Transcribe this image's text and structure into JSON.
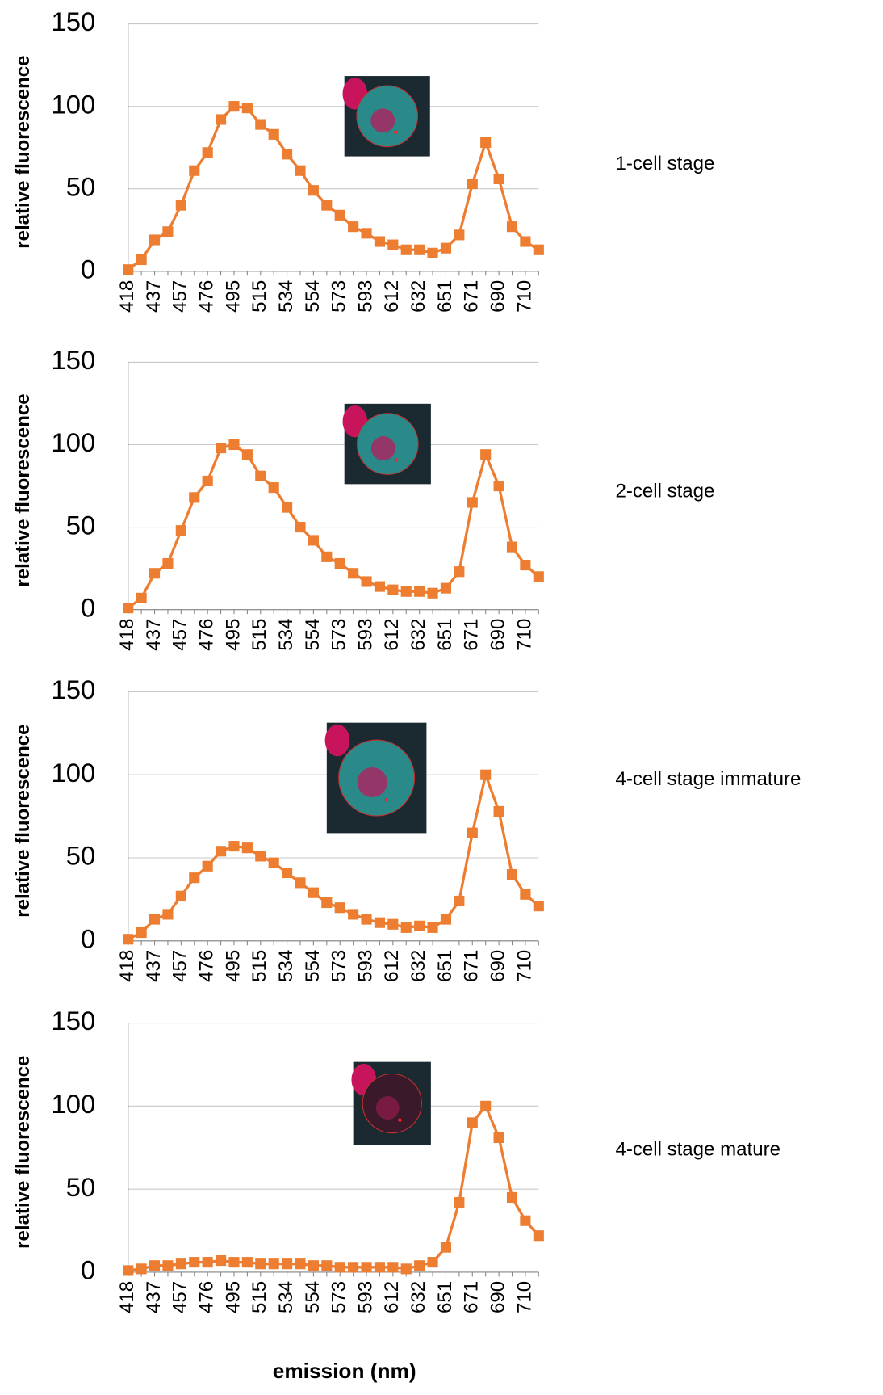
{
  "chart_data": [
    {
      "type": "line",
      "annotation": "1-cell stage",
      "y_label": "relative fluorescence",
      "categories": [
        "418",
        null,
        "437",
        null,
        "457",
        null,
        "476",
        null,
        "495",
        null,
        "515",
        null,
        "534",
        null,
        "554",
        null,
        "573",
        null,
        "593",
        null,
        "612",
        null,
        "632",
        null,
        "651",
        null,
        "671",
        null,
        "690",
        null,
        "710",
        null
      ],
      "values": [
        1,
        7,
        19,
        24,
        40,
        61,
        72,
        92,
        100,
        99,
        89,
        83,
        71,
        61,
        49,
        40,
        34,
        27,
        23,
        18,
        16,
        13,
        13,
        11,
        14,
        22,
        53,
        78,
        56,
        27,
        18,
        13
      ],
      "color": "#ed7d31",
      "ylim": [
        0,
        150
      ],
      "yticks": [
        0,
        50,
        100,
        150
      ],
      "grid": true
    },
    {
      "type": "line",
      "annotation": "2-cell stage",
      "y_label": "relative fluorescence",
      "categories": [
        "418",
        null,
        "437",
        null,
        "457",
        null,
        "476",
        null,
        "495",
        null,
        "515",
        null,
        "534",
        null,
        "554",
        null,
        "573",
        null,
        "593",
        null,
        "612",
        null,
        "632",
        null,
        "651",
        null,
        "671",
        null,
        "690",
        null,
        "710",
        null
      ],
      "values": [
        1,
        7,
        22,
        28,
        48,
        68,
        78,
        98,
        100,
        94,
        81,
        74,
        62,
        50,
        42,
        32,
        28,
        22,
        17,
        14,
        12,
        11,
        11,
        10,
        13,
        23,
        65,
        94,
        75,
        38,
        27,
        20
      ],
      "color": "#ed7d31",
      "ylim": [
        0,
        150
      ],
      "yticks": [
        0,
        50,
        100,
        150
      ],
      "grid": true
    },
    {
      "type": "line",
      "annotation": "4-cell stage immature",
      "y_label": "relative fluorescence",
      "categories": [
        "418",
        null,
        "437",
        null,
        "457",
        null,
        "476",
        null,
        "495",
        null,
        "515",
        null,
        "534",
        null,
        "554",
        null,
        "573",
        null,
        "593",
        null,
        "612",
        null,
        "632",
        null,
        "651",
        null,
        "671",
        null,
        "690",
        null,
        "710",
        null
      ],
      "values": [
        1,
        5,
        13,
        16,
        27,
        38,
        45,
        54,
        57,
        56,
        51,
        47,
        41,
        35,
        29,
        23,
        20,
        16,
        13,
        11,
        10,
        8,
        9,
        8,
        13,
        24,
        65,
        100,
        78,
        40,
        28,
        21
      ],
      "color": "#ed7d31",
      "ylim": [
        0,
        150
      ],
      "yticks": [
        0,
        50,
        100,
        150
      ],
      "grid": true
    },
    {
      "type": "line",
      "annotation": "4-cell stage mature",
      "y_label": "relative fluorescence",
      "x_label": "emission (nm)",
      "categories": [
        "418",
        null,
        "437",
        null,
        "457",
        null,
        "476",
        null,
        "495",
        null,
        "515",
        null,
        "534",
        null,
        "554",
        null,
        "573",
        null,
        "593",
        null,
        "612",
        null,
        "632",
        null,
        "651",
        null,
        "671",
        null,
        "690",
        null,
        "710",
        null
      ],
      "values": [
        1,
        2,
        4,
        4,
        5,
        6,
        6,
        7,
        6,
        6,
        5,
        5,
        5,
        5,
        4,
        4,
        3,
        3,
        3,
        3,
        3,
        2,
        4,
        6,
        15,
        42,
        90,
        100,
        81,
        45,
        31,
        22
      ],
      "color": "#ed7d31",
      "ylim": [
        0,
        150
      ],
      "yticks": [
        0,
        50,
        100,
        150
      ],
      "grid": true
    }
  ]
}
